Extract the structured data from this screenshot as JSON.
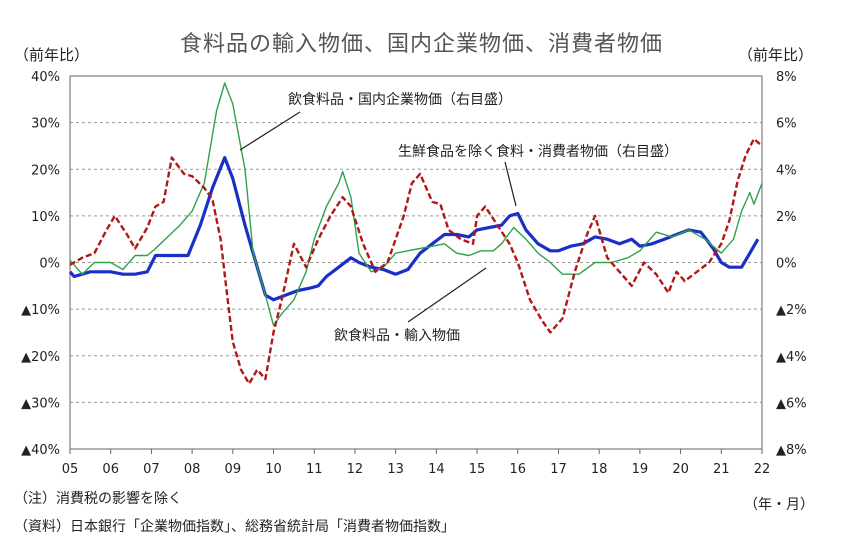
{
  "chart_data": {
    "type": "line",
    "title": "食料品の輸入物価、国内企業物価、消費者物価",
    "y_left_unit": "（前年比）",
    "y_right_unit": "（前年比）",
    "x_unit": "（年・月）",
    "y_left_range": [
      -40,
      40
    ],
    "y_right_range": [
      -8,
      8
    ],
    "x_range": [
      2005.0,
      2022.0
    ],
    "y_left_ticks": [
      "40%",
      "30%",
      "20%",
      "10%",
      "0%",
      "▲10%",
      "▲20%",
      "▲30%",
      "▲40%"
    ],
    "y_right_ticks": [
      "8%",
      "6%",
      "4%",
      "2%",
      "0%",
      "▲2%",
      "▲4%",
      "▲6%",
      "▲8%"
    ],
    "x_ticks": [
      "05",
      "06",
      "07",
      "08",
      "09",
      "10",
      "11",
      "12",
      "13",
      "14",
      "15",
      "16",
      "17",
      "18",
      "19",
      "20",
      "21",
      "22"
    ],
    "grid": "horizontal dashed",
    "series": [
      {
        "name": "飲食料品・輸入物価",
        "axis": "left",
        "color": "#1a2fc8",
        "style": "solid",
        "x": [
          2005.0,
          2005.1,
          2005.5,
          2006.0,
          2006.3,
          2006.6,
          2006.9,
          2007.1,
          2007.5,
          2007.9,
          2008.2,
          2008.5,
          2008.8,
          2009.0,
          2009.3,
          2009.6,
          2009.8,
          2010.0,
          2010.3,
          2010.6,
          2010.9,
          2011.1,
          2011.3,
          2011.6,
          2011.9,
          2012.1,
          2012.4,
          2012.7,
          2013.0,
          2013.3,
          2013.6,
          2013.9,
          2014.2,
          2014.5,
          2014.8,
          2015.0,
          2015.3,
          2015.6,
          2015.8,
          2016.0,
          2016.2,
          2016.5,
          2016.8,
          2017.0,
          2017.3,
          2017.6,
          2017.9,
          2018.2,
          2018.5,
          2018.8,
          2019.0,
          2019.3,
          2019.6,
          2019.9,
          2020.2,
          2020.5,
          2020.8,
          2021.0,
          2021.2,
          2021.5,
          2021.7,
          2021.9
        ],
        "y": [
          -2.0,
          -3.0,
          -2.0,
          -2.0,
          -2.5,
          -2.5,
          -2.0,
          1.5,
          1.5,
          1.5,
          8.0,
          16.0,
          22.5,
          18.0,
          8.0,
          -1.0,
          -7.0,
          -8.0,
          -7.0,
          -6.0,
          -5.5,
          -5.0,
          -3.0,
          -1.0,
          1.0,
          0.0,
          -1.0,
          -1.5,
          -2.5,
          -1.5,
          2.0,
          4.0,
          6.0,
          6.0,
          5.5,
          7.0,
          7.5,
          8.0,
          10.0,
          10.5,
          7.0,
          4.0,
          2.5,
          2.5,
          3.5,
          4.0,
          5.5,
          5.0,
          4.0,
          5.0,
          3.5,
          4.0,
          5.0,
          6.0,
          7.0,
          6.5,
          3.0,
          0.0,
          -1.0,
          -1.0,
          2.0,
          5.0
        ]
      },
      {
        "name": "飲食料品・国内企業物価（右目盛）",
        "axis": "right",
        "color": "#2ea24a",
        "style": "solid",
        "x": [
          2005.0,
          2005.3,
          2005.6,
          2006.0,
          2006.3,
          2006.6,
          2006.9,
          2007.1,
          2007.4,
          2007.7,
          2008.0,
          2008.3,
          2008.6,
          2008.8,
          2009.0,
          2009.3,
          2009.5,
          2009.8,
          2010.0,
          2010.2,
          2010.5,
          2010.8,
          2011.0,
          2011.3,
          2011.6,
          2011.7,
          2011.9,
          2012.1,
          2012.4,
          2012.7,
          2013.0,
          2013.3,
          2013.6,
          2013.9,
          2014.2,
          2014.5,
          2014.8,
          2015.1,
          2015.4,
          2015.6,
          2015.9,
          2016.2,
          2016.5,
          2016.8,
          2017.1,
          2017.5,
          2017.9,
          2018.3,
          2018.7,
          2019.0,
          2019.4,
          2019.8,
          2020.2,
          2020.6,
          2021.0,
          2021.3,
          2021.5,
          2021.7,
          2021.8,
          2022.0
        ],
        "y": [
          0.1,
          -0.5,
          0.0,
          0.0,
          -0.3,
          0.3,
          0.3,
          0.6,
          1.1,
          1.6,
          2.2,
          3.4,
          6.5,
          7.7,
          6.8,
          4.0,
          0.4,
          -1.4,
          -2.7,
          -2.2,
          -1.6,
          -0.4,
          1.0,
          2.4,
          3.4,
          3.9,
          2.8,
          0.4,
          -0.4,
          -0.2,
          0.4,
          0.5,
          0.6,
          0.7,
          0.8,
          0.4,
          0.3,
          0.5,
          0.5,
          0.8,
          1.5,
          1.0,
          0.4,
          0.0,
          -0.5,
          -0.5,
          0.0,
          0.0,
          0.2,
          0.5,
          1.3,
          1.1,
          1.4,
          1.0,
          0.4,
          1.0,
          2.2,
          3.0,
          2.5,
          3.4
        ]
      },
      {
        "name": "生鮮食品を除く食料・消費者物価（右目盛）",
        "axis": "right",
        "color": "#b01818",
        "style": "dashed",
        "x": [
          2005.0,
          2005.3,
          2005.6,
          2005.9,
          2006.1,
          2006.4,
          2006.6,
          2006.9,
          2007.1,
          2007.3,
          2007.5,
          2007.8,
          2008.0,
          2008.3,
          2008.5,
          2008.7,
          2008.9,
          2009.0,
          2009.2,
          2009.4,
          2009.6,
          2009.8,
          2010.0,
          2010.2,
          2010.5,
          2010.8,
          2011.1,
          2011.4,
          2011.7,
          2011.9,
          2012.2,
          2012.5,
          2012.8,
          2013.0,
          2013.2,
          2013.4,
          2013.6,
          2013.9,
          2014.1,
          2014.3,
          2014.6,
          2014.9,
          2015.0,
          2015.2,
          2015.5,
          2015.8,
          2016.0,
          2016.3,
          2016.6,
          2016.8,
          2017.1,
          2017.4,
          2017.7,
          2017.9,
          2018.2,
          2018.5,
          2018.8,
          2019.1,
          2019.4,
          2019.7,
          2019.9,
          2020.1,
          2020.4,
          2020.7,
          2021.0,
          2021.2,
          2021.4,
          2021.6,
          2021.8,
          2022.0
        ],
        "y": [
          -0.1,
          0.2,
          0.4,
          1.4,
          2.0,
          1.2,
          0.6,
          1.5,
          2.4,
          2.6,
          4.5,
          3.8,
          3.7,
          3.2,
          2.7,
          1.0,
          -2.0,
          -3.4,
          -4.6,
          -5.2,
          -4.6,
          -5.0,
          -3.0,
          -1.6,
          0.8,
          -0.2,
          1.0,
          2.0,
          2.8,
          2.4,
          0.8,
          -0.4,
          0.0,
          1.0,
          2.0,
          3.4,
          3.8,
          2.6,
          2.5,
          1.4,
          1.0,
          0.8,
          2.0,
          2.4,
          1.6,
          0.8,
          0.0,
          -1.6,
          -2.5,
          -3.0,
          -2.4,
          -0.4,
          1.2,
          2.0,
          0.2,
          -0.4,
          -1.0,
          0.0,
          -0.5,
          -1.3,
          -0.4,
          -0.8,
          -0.4,
          0.0,
          0.8,
          1.8,
          3.5,
          4.6,
          5.3,
          5.0
        ]
      }
    ],
    "annotations": [
      {
        "text": "飲食料品・国内企業物価（右目盛）",
        "target_series": 1
      },
      {
        "text": "生鮮食品を除く食料・消費者物価（右目盛）",
        "target_series": 2
      },
      {
        "text": "飲食料品・輸入物価",
        "target_series": 0
      }
    ]
  },
  "notes": [
    "（注）消費税の影響を除く",
    "（資料）日本銀行「企業物価指数」、総務省統計局「消費者物価指数」"
  ]
}
